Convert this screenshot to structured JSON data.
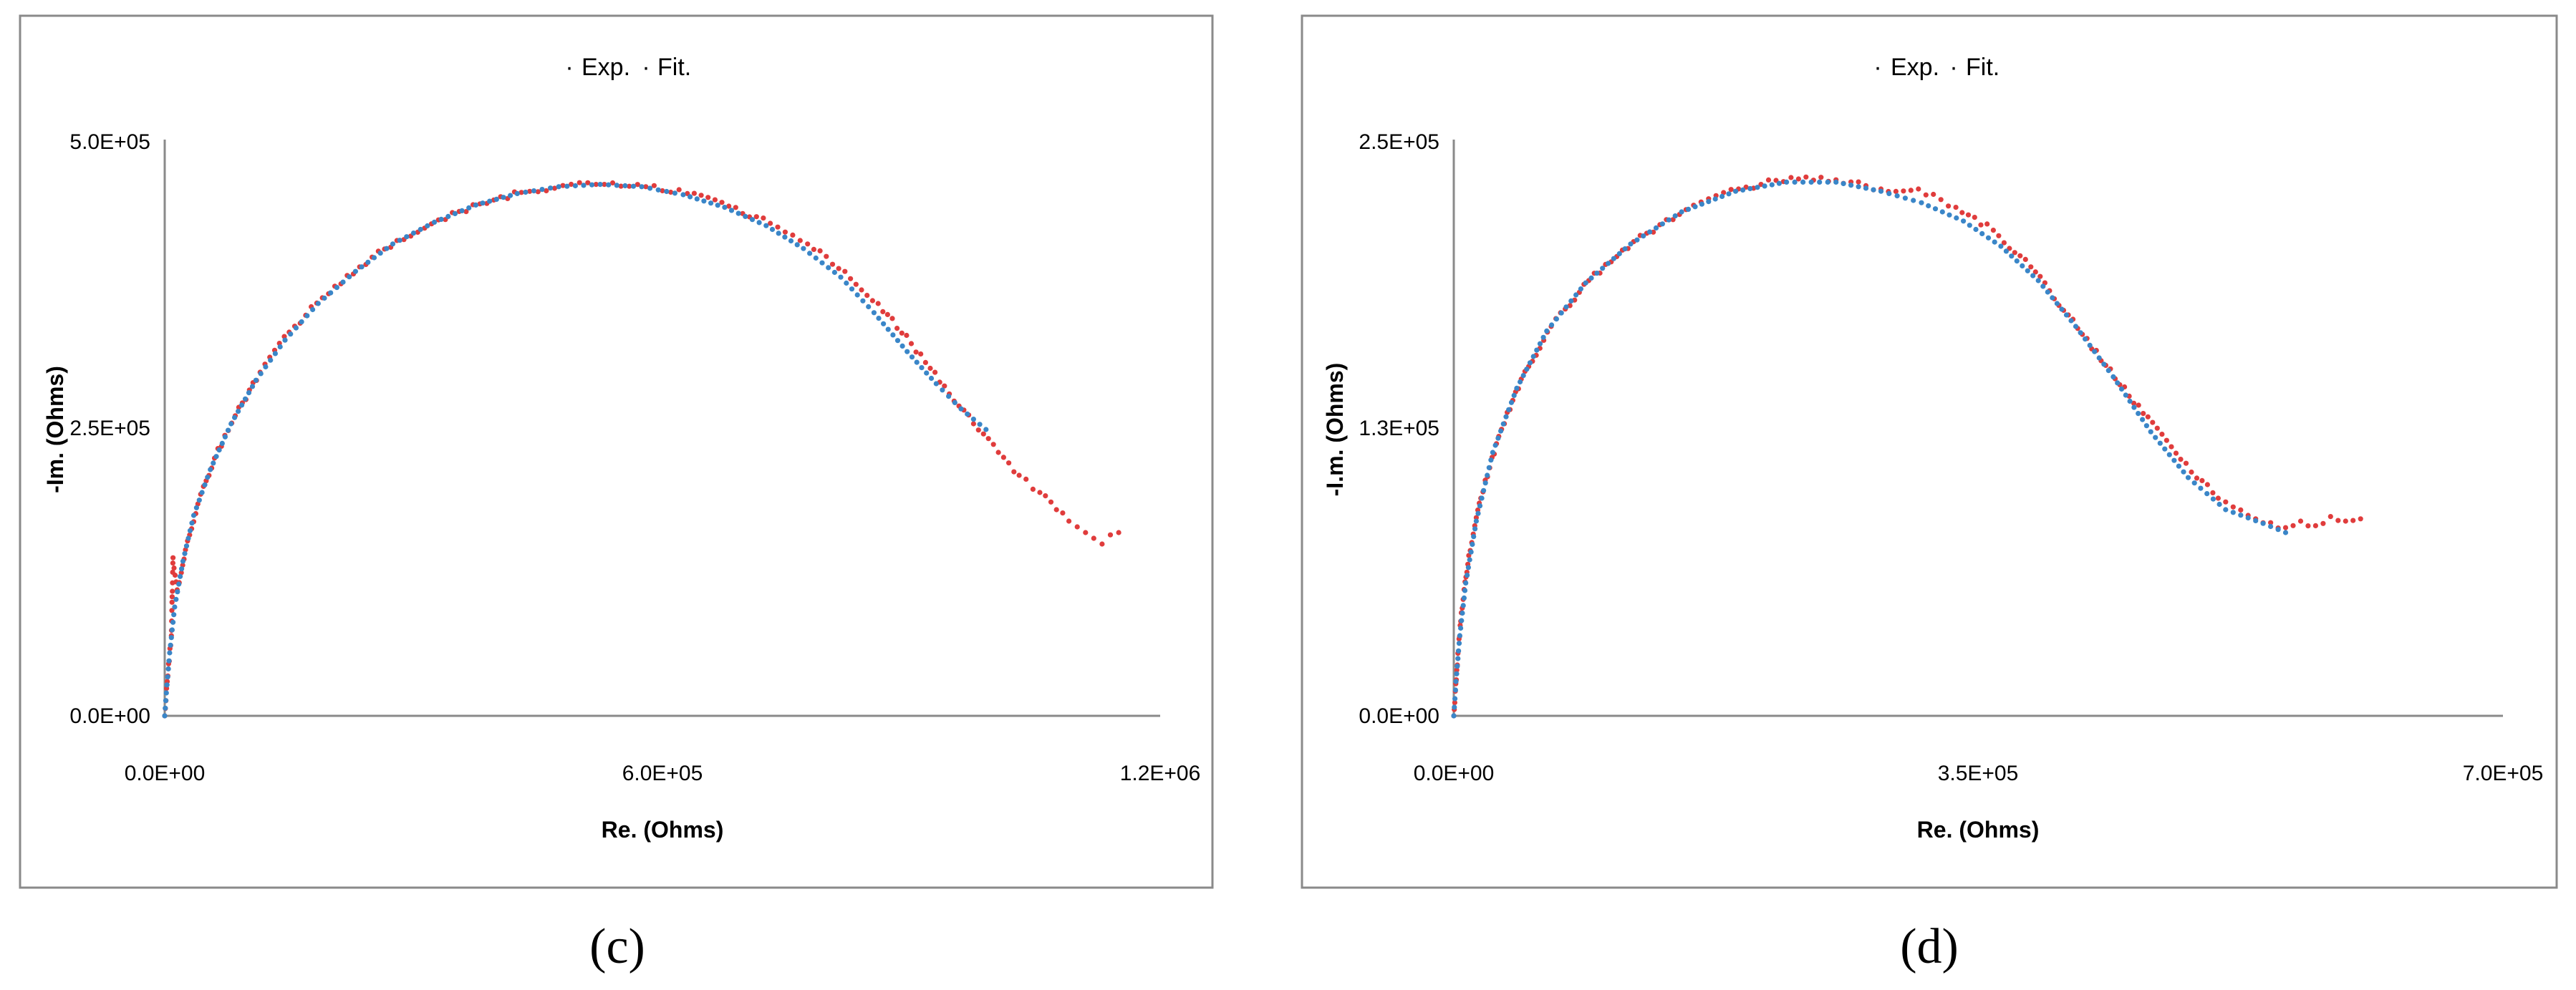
{
  "chart_data": [
    {
      "type": "scatter",
      "panel_label": "(c)",
      "xlabel": "Re. (Ohms)",
      "ylabel": "-Im. (Ohms)",
      "xlim": [
        0,
        1200000
      ],
      "ylim": [
        0,
        500000
      ],
      "x_ticks": [
        "0.0E+00",
        "6.0E+05",
        "1.2E+06"
      ],
      "y_ticks": [
        "0.0E+00",
        "2.5E+05",
        "5.0E+05"
      ],
      "legend_position": "top",
      "series": [
        {
          "name": "Exp.",
          "color": "#e03c3c",
          "points": [
            [
              0,
              0
            ],
            [
              3000,
              30000
            ],
            [
              8000,
              70000
            ],
            [
              15000,
              110000
            ],
            [
              25000,
              145000
            ],
            [
              40000,
              185000
            ],
            [
              60000,
              225000
            ],
            [
              85000,
              262000
            ],
            [
              115000,
              300000
            ],
            [
              150000,
              335000
            ],
            [
              190000,
              365000
            ],
            [
              235000,
              392000
            ],
            [
              280000,
              415000
            ],
            [
              330000,
              433000
            ],
            [
              380000,
              447000
            ],
            [
              430000,
              457000
            ],
            [
              480000,
              463000
            ],
            [
              530000,
              464000
            ],
            [
              580000,
              462000
            ],
            [
              630000,
              456000
            ],
            [
              680000,
              445000
            ],
            [
              730000,
              430000
            ],
            [
              775000,
              412000
            ],
            [
              820000,
              388000
            ],
            [
              860000,
              360000
            ],
            [
              900000,
              325000
            ],
            [
              940000,
              288000
            ],
            [
              975000,
              255000
            ],
            [
              1005000,
              230000
            ],
            [
              1030000,
              210000
            ],
            [
              1055000,
              195000
            ],
            [
              1075000,
              180000
            ],
            [
              1090000,
              170000
            ],
            [
              1100000,
              165000
            ],
            [
              1110000,
              160000
            ],
            [
              1120000,
              155000
            ],
            [
              1130000,
              150000
            ],
            [
              1140000,
              158000
            ],
            [
              1150000,
              160000
            ],
            [
              20000,
              125000
            ],
            [
              10000,
              138000
            ]
          ]
        },
        {
          "name": "Fit.",
          "color": "#3a86c8",
          "points": [
            [
              0,
              0
            ],
            [
              2000,
              20000
            ],
            [
              6000,
              55000
            ],
            [
              12000,
              95000
            ],
            [
              22000,
              135000
            ],
            [
              35000,
              175000
            ],
            [
              55000,
              215000
            ],
            [
              80000,
              255000
            ],
            [
              110000,
              293000
            ],
            [
              145000,
              328000
            ],
            [
              185000,
              360000
            ],
            [
              230000,
              388000
            ],
            [
              275000,
              412000
            ],
            [
              325000,
              431000
            ],
            [
              375000,
              446000
            ],
            [
              425000,
              456000
            ],
            [
              475000,
              462000
            ],
            [
              525000,
              464000
            ],
            [
              575000,
              462000
            ],
            [
              625000,
              455000
            ],
            [
              675000,
              444000
            ],
            [
              725000,
              428000
            ],
            [
              770000,
              408000
            ],
            [
              815000,
              383000
            ],
            [
              855000,
              352000
            ],
            [
              895000,
              318000
            ],
            [
              930000,
              290000
            ],
            [
              960000,
              268000
            ],
            [
              990000,
              250000
            ]
          ]
        }
      ]
    },
    {
      "type": "scatter",
      "panel_label": "(d)",
      "xlabel": "Re. (Ohms)",
      "ylabel": "-I.m. (Ohms)",
      "xlim": [
        0,
        700000
      ],
      "ylim": [
        0,
        250000
      ],
      "x_ticks": [
        "0.0E+00",
        "3.5E+05",
        "7.0E+05"
      ],
      "y_ticks": [
        "0.0E+00",
        "1.3E+05",
        "2.5E+05"
      ],
      "legend_position": "top",
      "series": [
        {
          "name": "Exp.",
          "color": "#e03c3c",
          "points": [
            [
              0,
              0
            ],
            [
              2000,
              20000
            ],
            [
              5000,
              45000
            ],
            [
              10000,
              70000
            ],
            [
              18000,
              95000
            ],
            [
              30000,
              122000
            ],
            [
              45000,
              147000
            ],
            [
              65000,
              170000
            ],
            [
              90000,
              190000
            ],
            [
              120000,
              207000
            ],
            [
              155000,
              221000
            ],
            [
              190000,
              230000
            ],
            [
              225000,
              235000
            ],
            [
              255000,
              234000
            ],
            [
              285000,
              230000
            ],
            [
              310000,
              230000
            ],
            [
              335000,
              222000
            ],
            [
              360000,
              212000
            ],
            [
              385000,
              196000
            ],
            [
              410000,
              175000
            ],
            [
              435000,
              153000
            ],
            [
              460000,
              132000
            ],
            [
              485000,
              112000
            ],
            [
              510000,
              95000
            ],
            [
              535000,
              86000
            ],
            [
              550000,
              82000
            ],
            [
              565000,
              85000
            ],
            [
              575000,
              83000
            ],
            [
              585000,
              87000
            ],
            [
              595000,
              85000
            ],
            [
              605000,
              86000
            ]
          ]
        },
        {
          "name": "Fit.",
          "color": "#3a86c8",
          "points": [
            [
              0,
              0
            ],
            [
              1500,
              15000
            ],
            [
              4000,
              35000
            ],
            [
              8000,
              58000
            ],
            [
              15000,
              85000
            ],
            [
              26000,
              115000
            ],
            [
              42000,
              143000
            ],
            [
              62000,
              168000
            ],
            [
              88000,
              189000
            ],
            [
              118000,
              206000
            ],
            [
              152000,
              220000
            ],
            [
              188000,
              229000
            ],
            [
              222000,
              233000
            ],
            [
              255000,
              233000
            ],
            [
              285000,
              229000
            ],
            [
              312000,
              224000
            ],
            [
              340000,
              216000
            ],
            [
              365000,
              205000
            ],
            [
              390000,
              190000
            ],
            [
              415000,
              170000
            ],
            [
              440000,
              148000
            ],
            [
              465000,
              124000
            ],
            [
              490000,
              104000
            ],
            [
              515000,
              90000
            ],
            [
              540000,
              84000
            ],
            [
              555000,
              80000
            ]
          ]
        }
      ]
    }
  ]
}
